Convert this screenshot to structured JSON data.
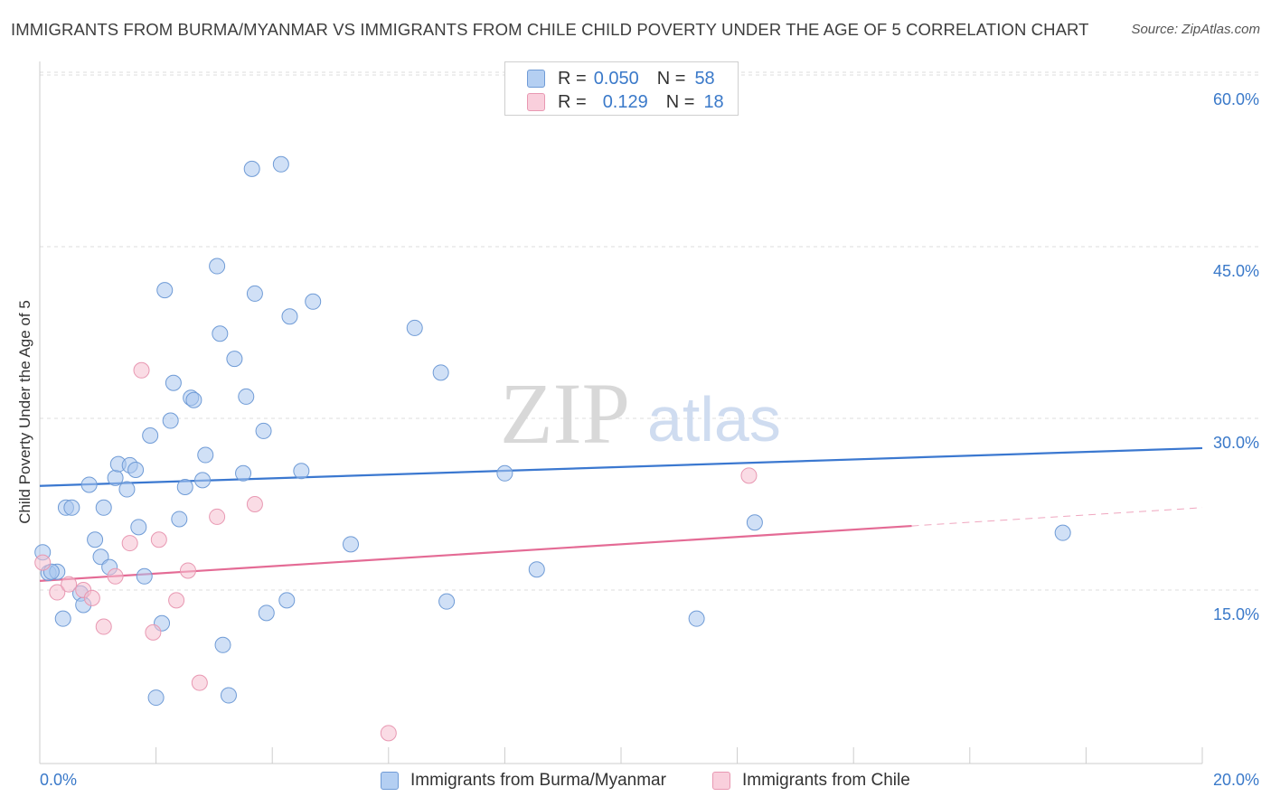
{
  "title": "IMMIGRANTS FROM BURMA/MYANMAR VS IMMIGRANTS FROM CHILE CHILD POVERTY UNDER THE AGE OF 5 CORRELATION CHART",
  "source": "Source: ZipAtlas.com",
  "watermark": {
    "zip": "ZIP",
    "atlas": "atlas"
  },
  "legend": {
    "rows": [
      {
        "r_label": "R =",
        "r_value": "0.050",
        "n_label": "N =",
        "n_value": "58"
      },
      {
        "r_label": "R =",
        "r_value": "0.129",
        "n_label": "N =",
        "n_value": "18"
      }
    ]
  },
  "colors": {
    "blue_fill": "#a9c7ee",
    "blue_stroke": "#6f9bd6",
    "blue_line": "#3b78d0",
    "pink_fill": "#f6bfd0",
    "pink_stroke": "#e898b2",
    "pink_line": "#e46b95",
    "tick_text": "#3a79c9",
    "grid": "#dddddd"
  },
  "chart_data": {
    "type": "scatter",
    "title": "IMMIGRANTS FROM BURMA/MYANMAR VS IMMIGRANTS FROM CHILE CHILD POVERTY UNDER THE AGE OF 5 CORRELATION CHART",
    "xlabel": "",
    "ylabel": "Child Poverty Under the Age of 5",
    "xlim": [
      0,
      20
    ],
    "ylim": [
      0,
      63
    ],
    "x_tick_labels": [
      {
        "value": 0,
        "label": "0.0%"
      },
      {
        "value": 20,
        "label": "20.0%"
      }
    ],
    "x_minor_ticks": [
      2,
      4,
      6,
      8,
      10,
      12,
      14,
      16,
      18,
      20
    ],
    "y_ticks": [
      {
        "value": 15,
        "label": "15.0%"
      },
      {
        "value": 30,
        "label": "30.0%"
      },
      {
        "value": 45,
        "label": "45.0%"
      },
      {
        "value": 60,
        "label": "60.0%"
      }
    ],
    "grid": true,
    "series": [
      {
        "name": "Immigrants from Burma/Myanmar",
        "color": "blue",
        "points": [
          [
            0.05,
            18.3
          ],
          [
            0.15,
            16.5
          ],
          [
            0.3,
            16.6
          ],
          [
            0.4,
            12.5
          ],
          [
            0.45,
            22.2
          ],
          [
            0.55,
            22.2
          ],
          [
            0.7,
            14.7
          ],
          [
            0.75,
            13.7
          ],
          [
            0.85,
            24.2
          ],
          [
            0.95,
            19.4
          ],
          [
            1.05,
            17.9
          ],
          [
            1.1,
            22.2
          ],
          [
            1.2,
            17.0
          ],
          [
            1.3,
            24.8
          ],
          [
            1.35,
            26.0
          ],
          [
            1.5,
            23.8
          ],
          [
            1.55,
            25.9
          ],
          [
            1.65,
            25.5
          ],
          [
            1.7,
            20.5
          ],
          [
            1.8,
            16.2
          ],
          [
            1.9,
            28.5
          ],
          [
            2.0,
            5.6
          ],
          [
            2.1,
            12.1
          ],
          [
            2.15,
            41.2
          ],
          [
            2.25,
            29.8
          ],
          [
            2.3,
            33.1
          ],
          [
            2.4,
            21.2
          ],
          [
            2.5,
            24.0
          ],
          [
            2.6,
            31.8
          ],
          [
            2.65,
            31.6
          ],
          [
            2.8,
            24.6
          ],
          [
            2.85,
            26.8
          ],
          [
            3.05,
            43.3
          ],
          [
            3.1,
            37.4
          ],
          [
            3.15,
            10.2
          ],
          [
            3.25,
            5.8
          ],
          [
            3.35,
            35.2
          ],
          [
            3.5,
            25.2
          ],
          [
            3.55,
            31.9
          ],
          [
            3.65,
            51.8
          ],
          [
            3.7,
            40.9
          ],
          [
            3.85,
            28.9
          ],
          [
            3.9,
            13.0
          ],
          [
            4.15,
            52.2
          ],
          [
            4.25,
            14.1
          ],
          [
            4.3,
            38.9
          ],
          [
            4.5,
            25.4
          ],
          [
            4.7,
            40.2
          ],
          [
            5.35,
            19.0
          ],
          [
            6.45,
            37.9
          ],
          [
            7.0,
            14.0
          ],
          [
            6.9,
            34.0
          ],
          [
            8.0,
            25.2
          ],
          [
            8.55,
            16.8
          ],
          [
            11.3,
            12.5
          ],
          [
            12.3,
            20.9
          ],
          [
            17.6,
            20.0
          ],
          [
            0.2,
            16.6
          ]
        ],
        "trend": {
          "x": [
            0,
            20
          ],
          "y": [
            24.1,
            27.4
          ],
          "dashed_from": null
        }
      },
      {
        "name": "Immigrants from Chile",
        "color": "pink",
        "points": [
          [
            0.05,
            17.4
          ],
          [
            0.3,
            14.8
          ],
          [
            0.5,
            15.5
          ],
          [
            0.75,
            15.0
          ],
          [
            0.9,
            14.3
          ],
          [
            1.1,
            11.8
          ],
          [
            1.3,
            16.2
          ],
          [
            1.55,
            19.1
          ],
          [
            1.75,
            34.2
          ],
          [
            1.95,
            11.3
          ],
          [
            2.05,
            19.4
          ],
          [
            2.35,
            14.1
          ],
          [
            2.55,
            16.7
          ],
          [
            2.75,
            6.9
          ],
          [
            3.05,
            21.4
          ],
          [
            3.7,
            22.5
          ],
          [
            6.0,
            2.5
          ],
          [
            12.2,
            25.0
          ]
        ],
        "trend": {
          "x": [
            0,
            20
          ],
          "y": [
            15.8,
            22.2
          ],
          "dashed_from": 15.0
        }
      }
    ]
  },
  "bottom_legend": {
    "series1": "Immigrants from Burma/Myanmar",
    "series2": "Immigrants from Chile"
  }
}
